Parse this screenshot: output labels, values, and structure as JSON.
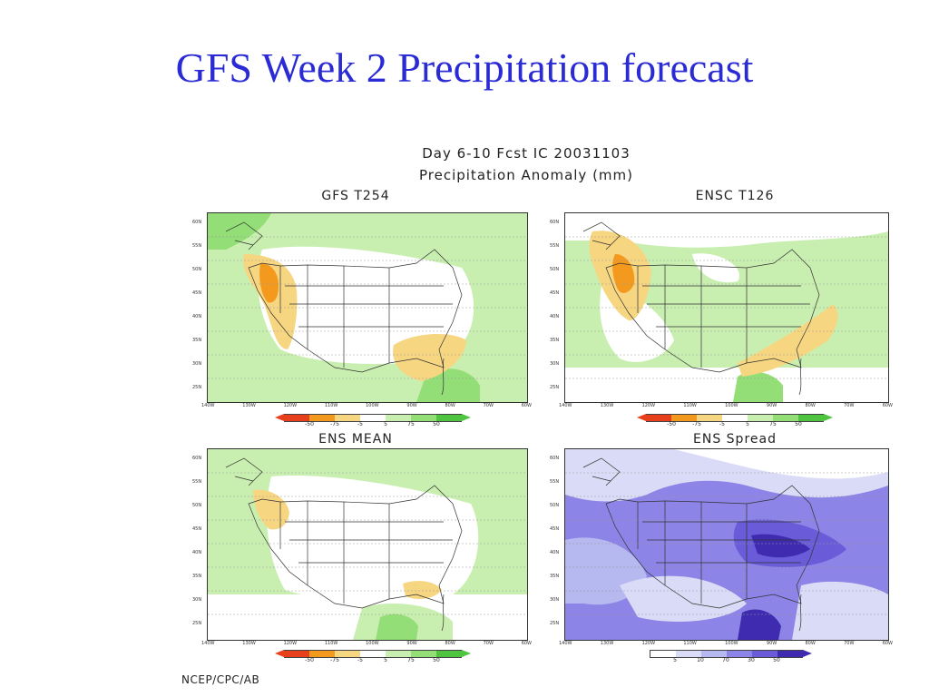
{
  "slide": {
    "title": "GFS Week 2 Precipitation forecast",
    "credit": "NCEP/CPC/AB"
  },
  "figure": {
    "header_line1": "Day 6-10 Fcst IC 20031103",
    "header_line2": "Precipitation Anomaly (mm)"
  },
  "panels": [
    {
      "id": "gfs",
      "title": "GFS T254",
      "lat_labels": [
        "60N",
        "55N",
        "50N",
        "45N",
        "40N",
        "35N",
        "30N",
        "25N",
        "20N"
      ],
      "lon_labels": [
        "140W",
        "130W",
        "120W",
        "110W",
        "100W",
        "90W",
        "80W",
        "70W",
        "60W"
      ],
      "legend_labels": [
        "-50",
        "-75",
        "-5",
        "5",
        "75",
        "50"
      ]
    },
    {
      "id": "ensc",
      "title": "ENSC T126",
      "lat_labels": [
        "60N",
        "55N",
        "50N",
        "45N",
        "40N",
        "35N",
        "30N",
        "25N",
        "20N"
      ],
      "lon_labels": [
        "140W",
        "130W",
        "120W",
        "110W",
        "100W",
        "90W",
        "80W",
        "70W",
        "60W"
      ],
      "legend_labels": [
        "-50",
        "-75",
        "-5",
        "5",
        "75",
        "50"
      ]
    },
    {
      "id": "ensmean",
      "title": "ENS MEAN",
      "lat_labels": [
        "60N",
        "55N",
        "50N",
        "45N",
        "40N",
        "35N",
        "30N",
        "25N",
        "20N"
      ],
      "lon_labels": [
        "140W",
        "130W",
        "120W",
        "110W",
        "100W",
        "90W",
        "80W",
        "70W",
        "60W"
      ],
      "legend_labels": [
        "-50",
        "-75",
        "-5",
        "5",
        "75",
        "50"
      ]
    },
    {
      "id": "ensspread",
      "title": "ENS Spread",
      "lat_labels": [
        "60N",
        "55N",
        "50N",
        "45N",
        "40N",
        "35N",
        "30N",
        "25N",
        "20N"
      ],
      "lon_labels": [
        "140W",
        "130W",
        "120W",
        "110W",
        "100W",
        "90W",
        "80W",
        "70W",
        "60W"
      ],
      "legend_labels": [
        "5",
        "10",
        "70",
        "30",
        "50"
      ]
    }
  ],
  "colors": {
    "title_blue": "#2b2bd6",
    "anomaly_scale": [
      "#e8401c",
      "#f39a1e",
      "#f7d682",
      "#ffffff",
      "#c9efb0",
      "#93de76",
      "#4fc441"
    ],
    "spread_scale": [
      "#ffffff",
      "#dadcf7",
      "#b6b8f0",
      "#8c84e6",
      "#6a5bd9",
      "#3f2bb0"
    ]
  }
}
